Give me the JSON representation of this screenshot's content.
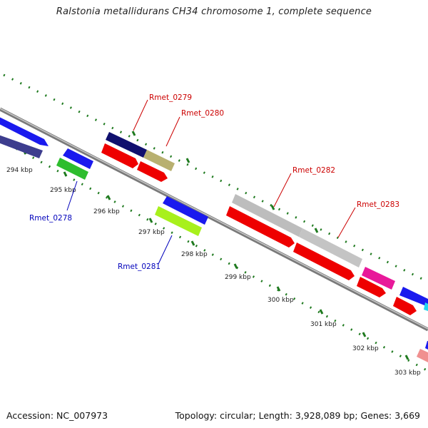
{
  "title": "Ralstonia metallidurans CH34 chromosome 1, complete sequence",
  "footer": {
    "accession": "Accession: NC_007973",
    "summary": "Topology: circular; Length: 3,928,089 bp; Genes: 3,669"
  },
  "scale_labels": [
    "294 kbp",
    "295 kbp",
    "296 kbp",
    "297 kbp",
    "298 kbp",
    "299 kbp",
    "300 kbp",
    "301 kbp",
    "302 kbp",
    "303 kbp"
  ],
  "gene_labels": {
    "rmet_0278": "Rmet_0278",
    "rmet_0279": "Rmet_0279",
    "rmet_0280": "Rmet_0280",
    "rmet_0281": "Rmet_0281",
    "rmet_0282": "Rmet_0282",
    "rmet_0283": "Rmet_0283"
  },
  "colors": {
    "forward_label": "#cc0000",
    "reverse_label": "#0000bb",
    "backbone": "#8a8a8a",
    "tick": "#1f7a1f"
  }
}
